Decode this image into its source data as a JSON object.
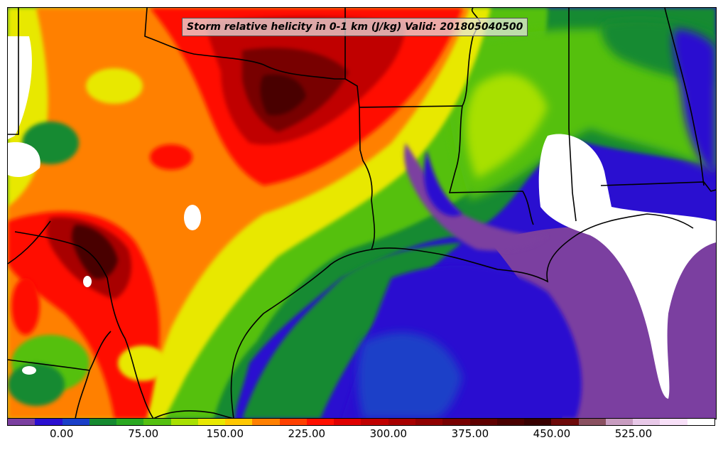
{
  "title": "Storm relative helicity in 0-1 km (J/kg) Valid: 201805040500",
  "colorbar": {
    "colors": [
      "#7b3fa0",
      "#2a0fd0",
      "#1a3fc8",
      "#158a30",
      "#2aa820",
      "#55c010",
      "#a8e000",
      "#e8e800",
      "#ffc800",
      "#ff8000",
      "#ff4000",
      "#ff1000",
      "#e00000",
      "#c00000",
      "#a80000",
      "#900000",
      "#780000",
      "#600000",
      "#4a0000",
      "#380000",
      "#6e0a0a",
      "#8a5060",
      "#c89cc0",
      "#e8c8e8",
      "#f8e0f8",
      "#ffffff"
    ],
    "tick_labels": [
      "0.00",
      "75.00",
      "150.00",
      "225.00",
      "300.00",
      "375.00",
      "450.00",
      "525.00"
    ],
    "tick_values": [
      0,
      75,
      150,
      225,
      300,
      375,
      450,
      525
    ],
    "range": [
      -50,
      600
    ]
  },
  "colors": {
    "ocean_low": "#2a0fd0",
    "purple": "#7b3fa0",
    "green": "#158a30",
    "lime": "#55c010",
    "yellow": "#e8e800",
    "orange": "#ff8000",
    "red": "#ff1000",
    "dark_red": "#900000",
    "maroon": "#4a0000"
  }
}
